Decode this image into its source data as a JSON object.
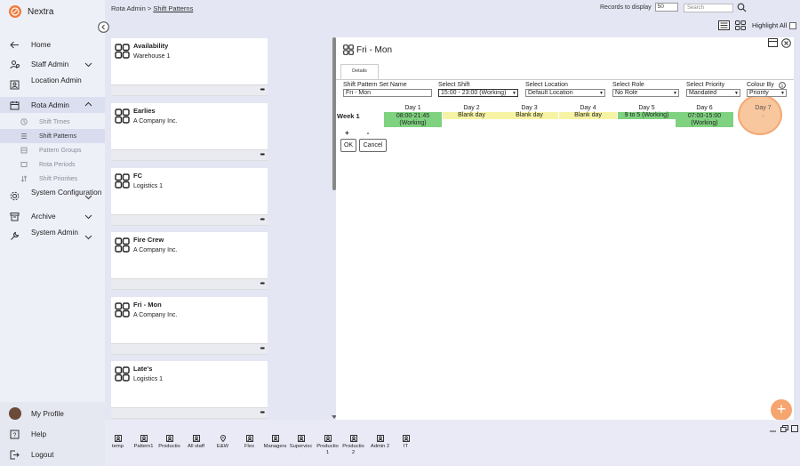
{
  "app": {
    "name": "Nextra"
  },
  "sidebar": {
    "items": [
      {
        "label": "Home",
        "icon": "arrow-left-icon"
      },
      {
        "label": "Staff Admin",
        "icon": "staff-icon"
      },
      {
        "label": "Location Admin",
        "icon": "location-icon"
      },
      {
        "label": "Rota Admin",
        "icon": "calendar-icon"
      },
      {
        "label": "System Configuration",
        "icon": "gear-icon"
      },
      {
        "label": "Archive",
        "icon": "archive-icon"
      },
      {
        "label": "System Admin",
        "icon": "wrench-icon"
      }
    ],
    "subitems": [
      {
        "label": "Shift Times"
      },
      {
        "label": "Shift Patterns"
      },
      {
        "label": "Pattern Groups"
      },
      {
        "label": "Rota Periods"
      },
      {
        "label": "Shift Priorities"
      }
    ],
    "bottom": [
      {
        "label": "My Profile"
      },
      {
        "label": "Help"
      },
      {
        "label": "Logout"
      }
    ]
  },
  "header": {
    "breadcrumb_root": "Rota Admin >",
    "breadcrumb_current": "Shift Patterns",
    "records_label": "Records to display",
    "records_value": "50",
    "search_placeholder": "Search",
    "highlight_all": "Highlight All"
  },
  "list": [
    {
      "name": "Availability",
      "org": "Warehouse 1"
    },
    {
      "name": "Earlies",
      "org": "A Company Inc."
    },
    {
      "name": "FC",
      "org": "Logistics 1"
    },
    {
      "name": "Fire Crew",
      "org": "A Company Inc."
    },
    {
      "name": "Fri - Mon",
      "org": "A Company Inc."
    },
    {
      "name": "Late's",
      "org": "Logistics 1"
    }
  ],
  "list_more": "•••",
  "detail": {
    "title": "Fri - Mon",
    "tab": "Details",
    "fields": {
      "set_name_label": "Shift Pattern Set Name",
      "set_name_value": "Fri - Mon",
      "shift_label": "Select Shift",
      "shift_value": "15:00 - 23:00 (Working)",
      "location_label": "Select Location",
      "location_value": "Default Location",
      "role_label": "Select Role",
      "role_value": "No Role",
      "priority_label": "Select Priority",
      "priority_value": "Mandated",
      "colour_label": "Colour By",
      "colour_value": "Priority"
    },
    "week_label": "Week 1",
    "days": [
      {
        "header": "Day 1",
        "cell": "08:00-21:45 (Working)",
        "color": "green"
      },
      {
        "header": "Day 2",
        "cell": "Blank day",
        "color": "yellow"
      },
      {
        "header": "Day 3",
        "cell": "Blank day",
        "color": "yellow"
      },
      {
        "header": "Day 4",
        "cell": "Blank day",
        "color": "yellow"
      },
      {
        "header": "Day 5",
        "cell": "9 to 5 (Working)",
        "color": "green"
      },
      {
        "header": "Day 6",
        "cell": "07:00-15:00 (Working)",
        "color": "green"
      },
      {
        "header": "Day 7",
        "cell": "»",
        "color": "none"
      }
    ],
    "plus": "+",
    "minus": "-",
    "ok": "OK",
    "cancel": "Cancel"
  },
  "fab": "+",
  "bottom_tabs": [
    "temp",
    "Pattern1",
    "Productio",
    "All staff",
    "E&W",
    "Flex",
    "Managers",
    "Supervisc",
    "Productio 1",
    "Productio 2",
    "Admin 2",
    "IT"
  ]
}
